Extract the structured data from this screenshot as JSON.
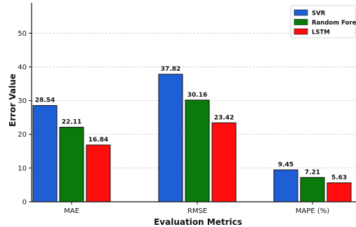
{
  "chart_data": {
    "type": "bar",
    "xlabel": "Evaluation Metrics",
    "ylabel": "Error Value",
    "categories": [
      "MAE",
      "RMSE",
      "MAPE (%)"
    ],
    "ylim": [
      0,
      59
    ],
    "yticks": [
      0,
      10,
      20,
      30,
      40,
      50
    ],
    "grid": true,
    "legend_position": "top-right",
    "series": [
      {
        "name": "SVR",
        "color": "#1f5fd6",
        "values": [
          28.54,
          37.82,
          9.45
        ],
        "labels": [
          "28.54",
          "37.82",
          "9.45"
        ]
      },
      {
        "name": "Random Forest",
        "color": "#0a7a0a",
        "values": [
          22.11,
          30.16,
          7.21
        ],
        "labels": [
          "22.11",
          "30.16",
          "7.21"
        ]
      },
      {
        "name": "LSTM",
        "color": "#ff0d0d",
        "values": [
          16.84,
          23.42,
          5.63
        ],
        "labels": [
          "16.84",
          "23.42",
          "5.63"
        ]
      }
    ]
  }
}
